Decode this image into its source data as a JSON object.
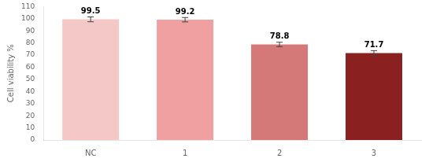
{
  "chart_data": {
    "type": "bar",
    "categories": [
      "NC",
      "1",
      "2",
      "3"
    ],
    "values": [
      99.5,
      99.2,
      78.8,
      71.7
    ],
    "errors": [
      2.0,
      1.8,
      1.8,
      2.0
    ],
    "colors": [
      "#f5c8c8",
      "#f0a0a0",
      "#d47878",
      "#8b2020"
    ],
    "ylabel": "Cell viability %",
    "ylim": [
      0,
      110
    ],
    "yticks": [
      0,
      10,
      20,
      30,
      40,
      50,
      60,
      70,
      80,
      90,
      100,
      110
    ],
    "grid": false,
    "data_labels": true
  }
}
